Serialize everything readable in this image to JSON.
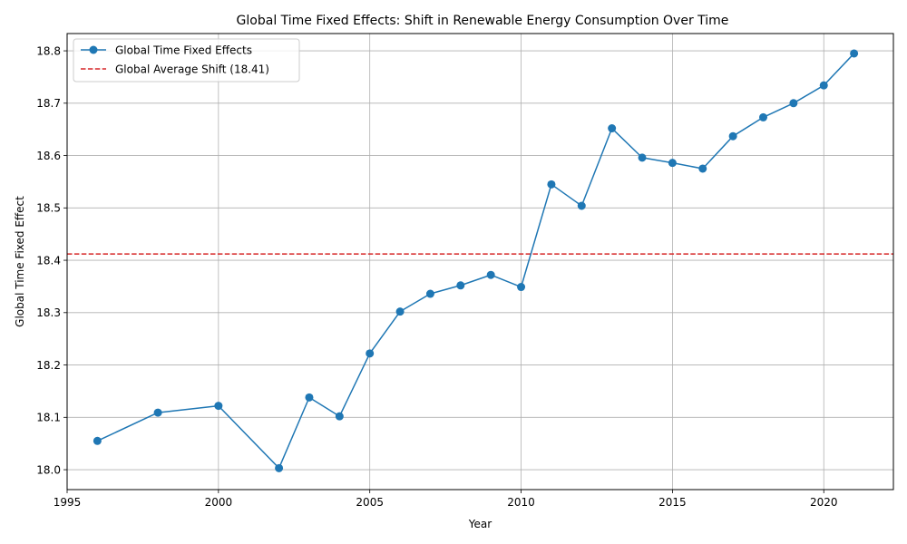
{
  "chart_data": {
    "type": "line",
    "title": "Global Time Fixed Effects: Shift in Renewable Energy Consumption Over Time",
    "xlabel": "Year",
    "ylabel": "Global Time Fixed Effect",
    "xlim": [
      1995,
      2022.3
    ],
    "ylim": [
      17.962,
      18.833
    ],
    "x_ticks": [
      1995,
      2000,
      2005,
      2010,
      2015,
      2020
    ],
    "y_ticks": [
      "18.0",
      "18.1",
      "18.2",
      "18.3",
      "18.4",
      "18.5",
      "18.6",
      "18.7",
      "18.8"
    ],
    "grid": true,
    "legend_position": "top-left",
    "series": [
      {
        "name": "Global Time Fixed Effects",
        "color": "#1f77b4",
        "marker": "circle",
        "x": [
          1996,
          1998,
          2000,
          2002,
          2003,
          2004,
          2005,
          2006,
          2007,
          2008,
          2009,
          2010,
          2011,
          2012,
          2013,
          2014,
          2015,
          2016,
          2017,
          2018,
          2019,
          2020,
          2021
        ],
        "y": [
          18.055,
          18.109,
          18.122,
          18.003,
          18.138,
          18.102,
          18.222,
          18.302,
          18.336,
          18.352,
          18.372,
          18.349,
          18.545,
          18.504,
          18.652,
          18.596,
          18.586,
          18.575,
          18.637,
          18.673,
          18.7,
          18.734,
          18.795
        ]
      }
    ],
    "reference_lines": [
      {
        "name": "Global Average Shift (18.41)",
        "value": 18.412,
        "color": "#d62728",
        "style": "dashed"
      }
    ]
  }
}
